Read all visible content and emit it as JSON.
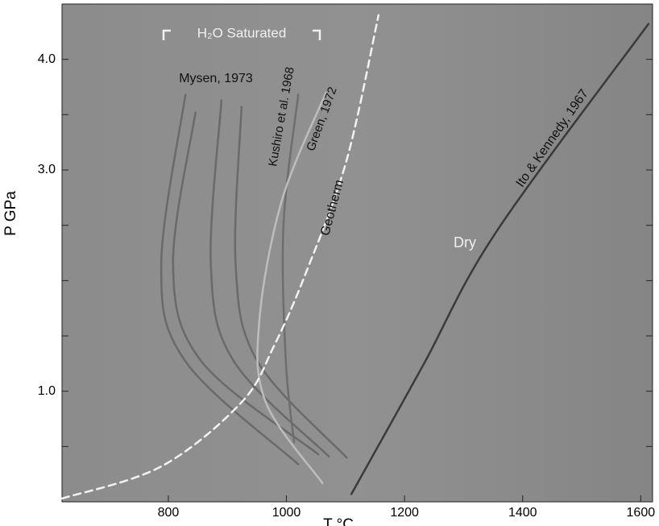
{
  "chart_data": {
    "type": "line",
    "xlabel": "T °C",
    "ylabel": "P GPa",
    "xlim": [
      620,
      1620
    ],
    "ylim": [
      0,
      4.5
    ],
    "xticks": [
      800,
      1000,
      1200,
      1400,
      1600
    ],
    "yticks": [
      {
        "value": 1,
        "label": "1.0"
      },
      {
        "value": 3,
        "label": "3.0"
      },
      {
        "value": 4,
        "label": "4.0"
      }
    ],
    "yminorticks": [
      0.5,
      1.5,
      2,
      2.5,
      3.5
    ],
    "grid": false,
    "series": [
      {
        "color": "#6a6a6a",
        "x": [
          829,
          788,
          829,
          1020
        ],
        "values": [
          3.68,
          2.14,
          1.27,
          0.34
        ]
      },
      {
        "color": "#6a6a6a",
        "x": [
          846,
          808,
          856,
          1054
        ],
        "values": [
          3.52,
          2.14,
          1.27,
          0.43
        ]
      },
      {
        "color": "#6a6a6a",
        "x": [
          890,
          872,
          911,
          1072
        ],
        "values": [
          3.63,
          2.14,
          1.27,
          0.41
        ]
      },
      {
        "color": "#6a6a6a",
        "x": [
          924,
          914,
          951,
          1102
        ],
        "values": [
          3.57,
          2.14,
          1.27,
          0.4
        ]
      },
      {
        "color": "#6e6e6e",
        "x": [
          1020,
          995,
          999,
          1013
        ],
        "values": [
          3.68,
          2.5,
          1.27,
          0.54
        ]
      },
      {
        "color": "#bdbdbd",
        "x": [
          1067,
          992,
          954,
          965,
          1061
        ],
        "values": [
          3.7,
          2.72,
          1.63,
          0.9,
          0.17
        ]
      },
      {
        "color": "#f2f2f2",
        "dashed": true,
        "x": [
          620,
          788,
          924,
          979,
          1033,
          1102,
          1156
        ],
        "values": [
          0.03,
          0.32,
          0.9,
          1.41,
          2.07,
          3.09,
          4.4
        ]
      },
      {
        "color": "#3a3a3a",
        "x": [
          1110,
          1231,
          1354,
          1613
        ],
        "values": [
          0.07,
          1.23,
          2.43,
          4.32
        ]
      }
    ],
    "annotations": [
      "H₂O Saturated",
      "Mysen, 1973",
      "Kushiro et al. 1968",
      "Green, 1972",
      "Geotherm",
      "Dry",
      "Ito & Kennedy, 1967"
    ]
  }
}
